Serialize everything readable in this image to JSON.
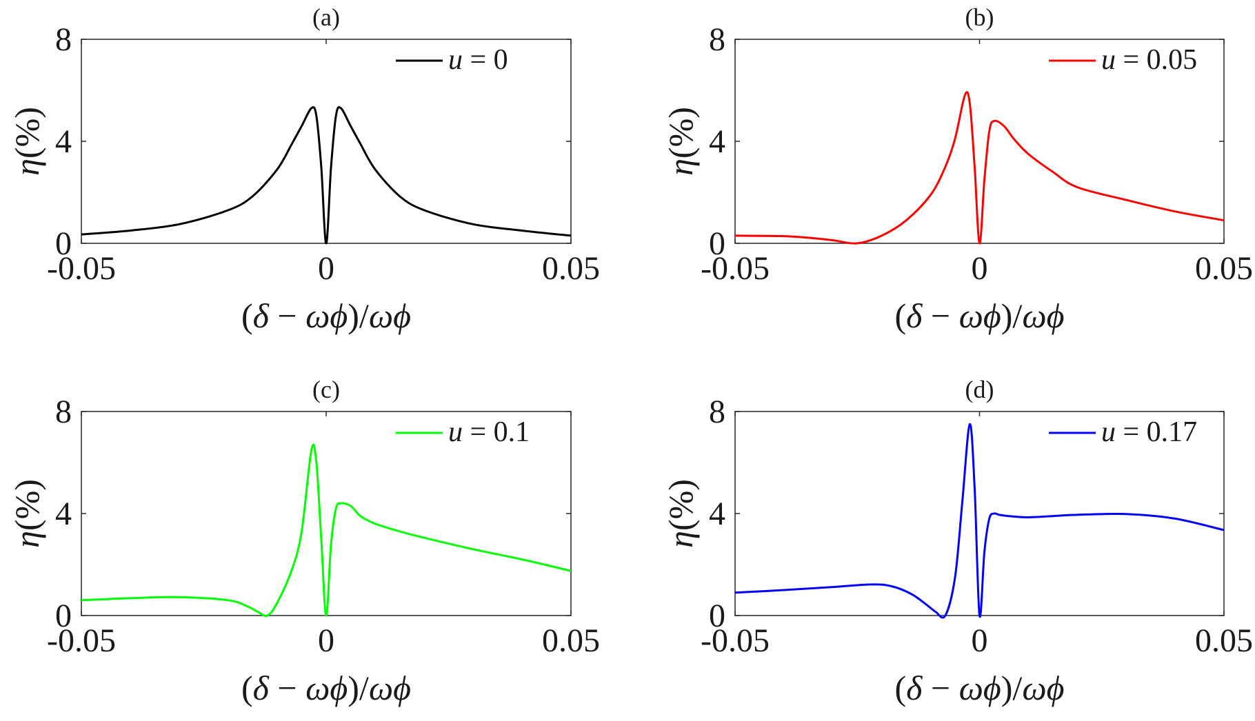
{
  "chart_data": [
    {
      "type": "line",
      "title": "(a)",
      "xlabel": "(δ − ω_ϕ)/ω_ϕ",
      "ylabel": "η(%)",
      "xlim": [
        -0.05,
        0.05
      ],
      "ylim": [
        0,
        8
      ],
      "xticks": [
        "-0.05",
        "0",
        "0.05"
      ],
      "yticks": [
        "0",
        "4",
        "8"
      ],
      "legend_position": "top-right",
      "grid": false,
      "series": [
        {
          "name": "u = 0",
          "color": "#000000",
          "x": [
            -0.05,
            -0.04,
            -0.03,
            -0.02,
            -0.015,
            -0.01,
            -0.007,
            -0.005,
            -0.003,
            -0.002,
            -0.001,
            0.0,
            0.001,
            0.002,
            0.003,
            0.005,
            0.007,
            0.01,
            0.015,
            0.02,
            0.03,
            0.04,
            0.05
          ],
          "y": [
            0.35,
            0.5,
            0.75,
            1.3,
            1.85,
            2.9,
            3.9,
            4.6,
            5.3,
            5.0,
            3.0,
            0.0,
            3.0,
            5.0,
            5.3,
            4.6,
            3.9,
            2.9,
            1.85,
            1.3,
            0.75,
            0.5,
            0.3
          ]
        }
      ]
    },
    {
      "type": "line",
      "title": "(b)",
      "xlabel": "(δ − ω_ϕ)/ω_ϕ",
      "ylabel": "η(%)",
      "xlim": [
        -0.05,
        0.05
      ],
      "ylim": [
        0,
        8
      ],
      "xticks": [
        "-0.05",
        "0",
        "0.05"
      ],
      "yticks": [
        "0",
        "4",
        "8"
      ],
      "legend_position": "top-right",
      "grid": false,
      "series": [
        {
          "name": "u = 0.05",
          "color": "#ff0000",
          "x": [
            -0.05,
            -0.04,
            -0.035,
            -0.03,
            -0.025,
            -0.02,
            -0.015,
            -0.01,
            -0.007,
            -0.005,
            -0.003,
            -0.002,
            -0.001,
            0.0,
            0.001,
            0.002,
            0.003,
            0.005,
            0.007,
            0.01,
            0.015,
            0.02,
            0.03,
            0.04,
            0.05
          ],
          "y": [
            0.3,
            0.28,
            0.22,
            0.12,
            0.0,
            0.3,
            0.9,
            1.9,
            3.0,
            4.1,
            5.8,
            5.5,
            3.0,
            0.0,
            2.5,
            4.4,
            4.8,
            4.6,
            4.1,
            3.5,
            2.8,
            2.2,
            1.7,
            1.25,
            0.9
          ]
        }
      ]
    },
    {
      "type": "line",
      "title": "(c)",
      "xlabel": "(δ − ω_ϕ)/ω_ϕ",
      "ylabel": "η(%)",
      "xlim": [
        -0.05,
        0.05
      ],
      "ylim": [
        0,
        8
      ],
      "xticks": [
        "-0.05",
        "0",
        "0.05"
      ],
      "yticks": [
        "0",
        "4",
        "8"
      ],
      "legend_position": "top-right",
      "grid": false,
      "series": [
        {
          "name": "u = 0.1",
          "color": "#00ff00",
          "x": [
            -0.05,
            -0.04,
            -0.03,
            -0.02,
            -0.016,
            -0.014,
            -0.012,
            -0.01,
            -0.007,
            -0.005,
            -0.003,
            -0.002,
            -0.001,
            0.0,
            0.001,
            0.002,
            0.003,
            0.005,
            0.007,
            0.01,
            0.015,
            0.02,
            0.03,
            0.04,
            0.05
          ],
          "y": [
            0.6,
            0.68,
            0.72,
            0.6,
            0.35,
            0.15,
            0.0,
            0.5,
            1.8,
            3.3,
            6.5,
            6.0,
            3.0,
            0.0,
            2.8,
            4.2,
            4.4,
            4.3,
            3.9,
            3.6,
            3.3,
            3.05,
            2.6,
            2.2,
            1.75
          ]
        }
      ]
    },
    {
      "type": "line",
      "title": "(d)",
      "xlabel": "(δ − ω_ϕ)/ω_ϕ",
      "ylabel": "η(%)",
      "xlim": [
        -0.05,
        0.05
      ],
      "ylim": [
        0,
        8
      ],
      "xticks": [
        "-0.05",
        "0",
        "0.05"
      ],
      "yticks": [
        "0",
        "4",
        "8"
      ],
      "legend_position": "top-right",
      "grid": false,
      "series": [
        {
          "name": "u = 0.17",
          "color": "#0000ff",
          "x": [
            -0.05,
            -0.04,
            -0.03,
            -0.022,
            -0.018,
            -0.014,
            -0.011,
            -0.009,
            -0.007,
            -0.005,
            -0.0035,
            -0.002,
            -0.001,
            0.0,
            0.001,
            0.002,
            0.003,
            0.004,
            0.006,
            0.01,
            0.015,
            0.02,
            0.03,
            0.04,
            0.05
          ],
          "y": [
            0.9,
            1.0,
            1.12,
            1.22,
            1.15,
            0.85,
            0.45,
            0.15,
            0.0,
            1.5,
            4.5,
            7.5,
            5.0,
            0.0,
            2.5,
            3.8,
            4.0,
            3.95,
            3.9,
            3.85,
            3.9,
            3.95,
            3.98,
            3.8,
            3.35
          ]
        }
      ]
    }
  ]
}
